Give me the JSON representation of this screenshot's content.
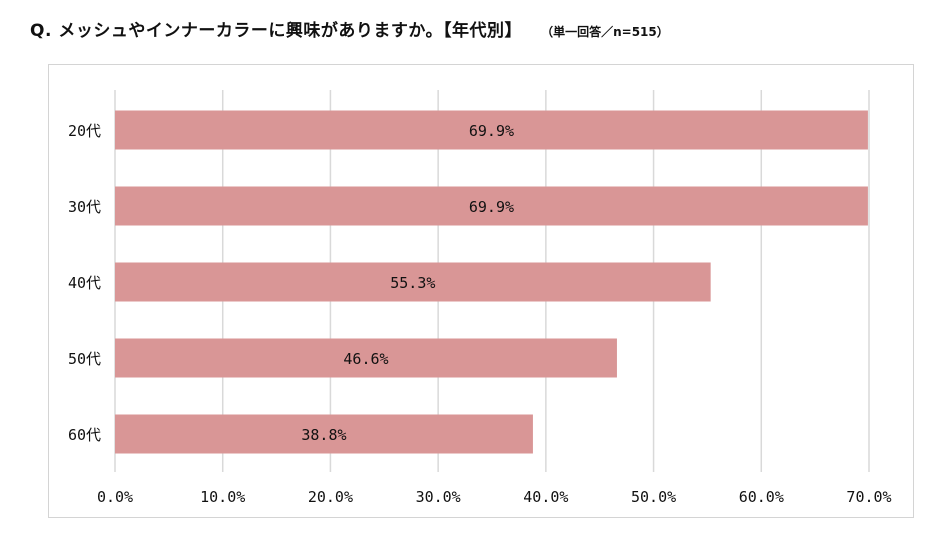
{
  "header": {
    "title": "Q. メッシュやインナーカラーに興味がありますか。【年代別】",
    "note": "（単一回答／n=515）"
  },
  "colors": {
    "bar": "#d99696",
    "grid": "#d9d9d9",
    "frame": "#d4d4d4",
    "text": "#111111"
  },
  "chart_data": {
    "type": "bar",
    "orientation": "horizontal",
    "categories": [
      "20代",
      "30代",
      "40代",
      "50代",
      "60代"
    ],
    "values": [
      69.9,
      69.9,
      55.3,
      46.6,
      38.8
    ],
    "data_labels": [
      "69.9%",
      "69.9%",
      "55.3%",
      "46.6%",
      "38.8%"
    ],
    "xlim": [
      0,
      70
    ],
    "x_ticks": [
      "0.0%",
      "10.0%",
      "20.0%",
      "30.0%",
      "40.0%",
      "50.0%",
      "60.0%",
      "70.0%"
    ],
    "grid": "vertical",
    "legend": "none"
  }
}
